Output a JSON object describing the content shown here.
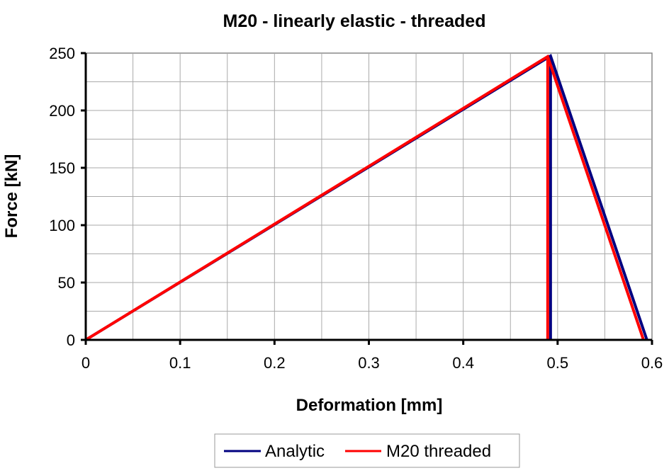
{
  "chart_data": {
    "type": "line",
    "title": "M20 - linearly elastic - threaded",
    "xlabel": "Deformation [mm]",
    "ylabel": "Force [kN]",
    "xlim": [
      0,
      0.6
    ],
    "ylim": [
      0,
      250
    ],
    "x_ticks": [
      "0",
      "0.1",
      "0.2",
      "0.3",
      "0.4",
      "0.5",
      "0.6"
    ],
    "y_ticks": [
      "0",
      "50",
      "100",
      "150",
      "200",
      "250"
    ],
    "grid": true,
    "legend_position": "bottom",
    "series": [
      {
        "name": "Analytic",
        "color": "#000080",
        "segments": [
          [
            [
              0,
              0
            ],
            [
              0.4925,
              247.5
            ],
            [
              0.5946,
              0
            ]
          ],
          [
            [
              0.4925,
              247.5
            ],
            [
              0.4925,
              0
            ]
          ]
        ]
      },
      {
        "name": "M20 threaded",
        "color": "#ff0000",
        "segments": [
          [
            [
              0,
              0
            ],
            [
              0.4895,
              247
            ],
            [
              0.591,
              0
            ]
          ],
          [
            [
              0.4895,
              247
            ],
            [
              0.4895,
              0
            ]
          ]
        ]
      }
    ]
  }
}
